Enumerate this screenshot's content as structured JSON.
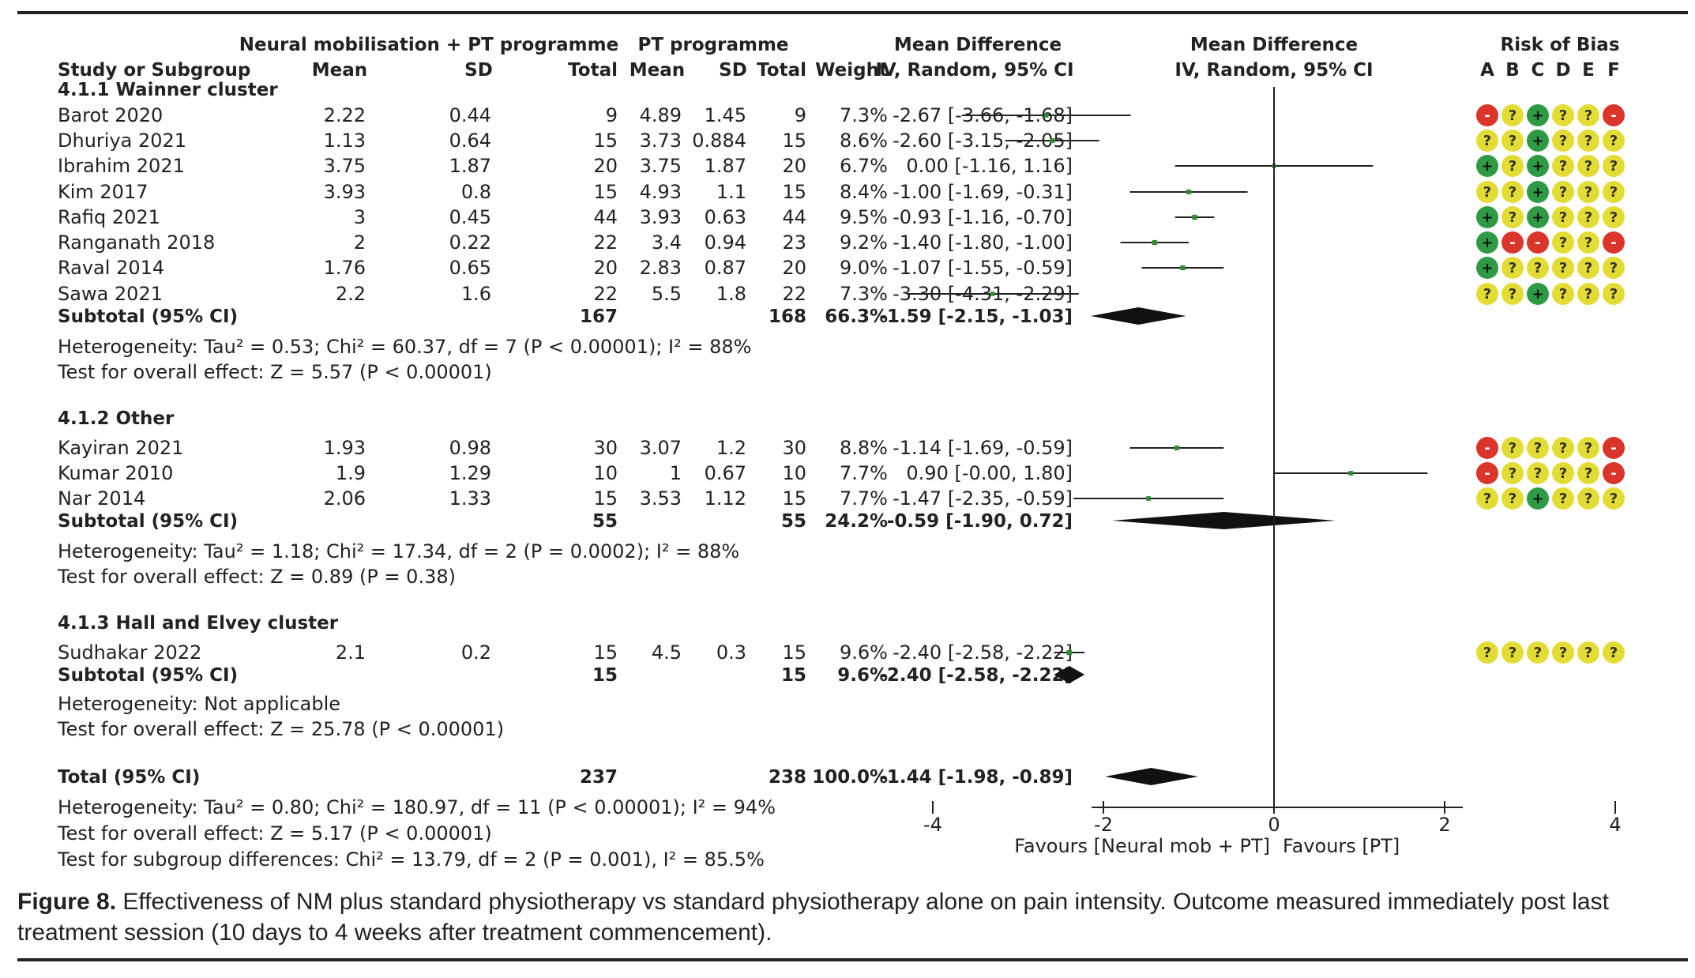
{
  "chart_data": {
    "type": "forest",
    "headers": {
      "group_nm": "Neural mobilisation + PT programme",
      "group_pt": "PT programme",
      "md_col_top": "Mean Difference",
      "md_col_bottom": "IV, Random, 95% CI",
      "plot_top": "Mean Difference",
      "plot_bottom": "IV, Random, 95% CI",
      "rob_title": "Risk of Bias",
      "study": "Study or Subgroup",
      "mean": "Mean",
      "sd": "SD",
      "total": "Total",
      "weight": "Weight",
      "rob_letters": [
        "A",
        "B",
        "C",
        "D",
        "E",
        "F"
      ]
    },
    "subgroups": [
      {
        "title": "4.1.1 Wainner cluster",
        "studies": [
          {
            "name": "Barot 2020",
            "m1": "2.22",
            "sd1": "0.44",
            "n1": "9",
            "m2": "4.89",
            "sd2": "1.45",
            "n2": "9",
            "weight": "7.3%",
            "ci": "-2.67 [-3.66, -1.68]",
            "md": -2.67,
            "lo": -3.66,
            "hi": -1.68,
            "w": 7.3,
            "rob": [
              "-",
              "?",
              "+",
              "?",
              "?",
              "-"
            ]
          },
          {
            "name": "Dhuriya 2021",
            "m1": "1.13",
            "sd1": "0.64",
            "n1": "15",
            "m2": "3.73",
            "sd2": "0.884",
            "n2": "15",
            "weight": "8.6%",
            "ci": "-2.60 [-3.15, -2.05]",
            "md": -2.6,
            "lo": -3.15,
            "hi": -2.05,
            "w": 8.6,
            "rob": [
              "?",
              "?",
              "+",
              "?",
              "?",
              "?"
            ]
          },
          {
            "name": "Ibrahim 2021",
            "m1": "3.75",
            "sd1": "1.87",
            "n1": "20",
            "m2": "3.75",
            "sd2": "1.87",
            "n2": "20",
            "weight": "6.7%",
            "ci": "0.00 [-1.16, 1.16]",
            "md": 0.0,
            "lo": -1.16,
            "hi": 1.16,
            "w": 6.7,
            "rob": [
              "+",
              "?",
              "+",
              "?",
              "?",
              "?"
            ]
          },
          {
            "name": "Kim 2017",
            "m1": "3.93",
            "sd1": "0.8",
            "n1": "15",
            "m2": "4.93",
            "sd2": "1.1",
            "n2": "15",
            "weight": "8.4%",
            "ci": "-1.00 [-1.69, -0.31]",
            "md": -1.0,
            "lo": -1.69,
            "hi": -0.31,
            "w": 8.4,
            "rob": [
              "?",
              "?",
              "+",
              "?",
              "?",
              "?"
            ]
          },
          {
            "name": "Rafiq 2021",
            "m1": "3",
            "sd1": "0.45",
            "n1": "44",
            "m2": "3.93",
            "sd2": "0.63",
            "n2": "44",
            "weight": "9.5%",
            "ci": "-0.93 [-1.16, -0.70]",
            "md": -0.93,
            "lo": -1.16,
            "hi": -0.7,
            "w": 9.5,
            "rob": [
              "+",
              "?",
              "+",
              "?",
              "?",
              "?"
            ]
          },
          {
            "name": "Ranganath 2018",
            "m1": "2",
            "sd1": "0.22",
            "n1": "22",
            "m2": "3.4",
            "sd2": "0.94",
            "n2": "23",
            "weight": "9.2%",
            "ci": "-1.40 [-1.80, -1.00]",
            "md": -1.4,
            "lo": -1.8,
            "hi": -1.0,
            "w": 9.2,
            "rob": [
              "+",
              "-",
              "-",
              "?",
              "?",
              "-"
            ]
          },
          {
            "name": "Raval 2014",
            "m1": "1.76",
            "sd1": "0.65",
            "n1": "20",
            "m2": "2.83",
            "sd2": "0.87",
            "n2": "20",
            "weight": "9.0%",
            "ci": "-1.07 [-1.55, -0.59]",
            "md": -1.07,
            "lo": -1.55,
            "hi": -0.59,
            "w": 9.0,
            "rob": [
              "+",
              "?",
              "?",
              "?",
              "?",
              "?"
            ]
          },
          {
            "name": "Sawa 2021",
            "m1": "2.2",
            "sd1": "1.6",
            "n1": "22",
            "m2": "5.5",
            "sd2": "1.8",
            "n2": "22",
            "weight": "7.3%",
            "ci": "-3.30 [-4.31, -2.29]",
            "md": -3.3,
            "lo": -4.31,
            "hi": -2.29,
            "w": 7.3,
            "rob": [
              "?",
              "?",
              "+",
              "?",
              "?",
              "?"
            ]
          }
        ],
        "subtotal": {
          "label": "Subtotal (95% CI)",
          "n1": "167",
          "n2": "168",
          "weight": "66.3%",
          "ci": "-1.59 [-2.15, -1.03]",
          "md": -1.59,
          "lo": -2.15,
          "hi": -1.03
        },
        "heterogeneity": "Heterogeneity: Tau² = 0.53; Chi² = 60.37, df = 7 (P < 0.00001); I² = 88%",
        "overall": "Test for overall effect: Z = 5.57 (P < 0.00001)"
      },
      {
        "title": "4.1.2 Other",
        "studies": [
          {
            "name": "Kayiran 2021",
            "m1": "1.93",
            "sd1": "0.98",
            "n1": "30",
            "m2": "3.07",
            "sd2": "1.2",
            "n2": "30",
            "weight": "8.8%",
            "ci": "-1.14 [-1.69, -0.59]",
            "md": -1.14,
            "lo": -1.69,
            "hi": -0.59,
            "w": 8.8,
            "rob": [
              "-",
              "?",
              "?",
              "?",
              "?",
              "-"
            ]
          },
          {
            "name": "Kumar 2010",
            "m1": "1.9",
            "sd1": "1.29",
            "n1": "10",
            "m2": "1",
            "sd2": "0.67",
            "n2": "10",
            "weight": "7.7%",
            "ci": "0.90 [-0.00, 1.80]",
            "md": 0.9,
            "lo": 0.0,
            "hi": 1.8,
            "w": 7.7,
            "rob": [
              "-",
              "?",
              "?",
              "?",
              "?",
              "-"
            ]
          },
          {
            "name": "Nar 2014",
            "m1": "2.06",
            "sd1": "1.33",
            "n1": "15",
            "m2": "3.53",
            "sd2": "1.12",
            "n2": "15",
            "weight": "7.7%",
            "ci": "-1.47 [-2.35, -0.59]",
            "md": -1.47,
            "lo": -2.35,
            "hi": -0.59,
            "w": 7.7,
            "rob": [
              "?",
              "?",
              "+",
              "?",
              "?",
              "?"
            ]
          }
        ],
        "subtotal": {
          "label": "Subtotal (95% CI)",
          "n1": "55",
          "n2": "55",
          "weight": "24.2%",
          "ci": "-0.59 [-1.90, 0.72]",
          "md": -0.59,
          "lo": -1.9,
          "hi": 0.72
        },
        "heterogeneity": "Heterogeneity: Tau² = 1.18; Chi² = 17.34, df = 2 (P = 0.0002); I² = 88%",
        "overall": "Test for overall effect: Z = 0.89 (P = 0.38)"
      },
      {
        "title": "4.1.3 Hall and Elvey cluster",
        "studies": [
          {
            "name": "Sudhakar 2022",
            "m1": "2.1",
            "sd1": "0.2",
            "n1": "15",
            "m2": "4.5",
            "sd2": "0.3",
            "n2": "15",
            "weight": "9.6%",
            "ci": "-2.40 [-2.58, -2.22]",
            "md": -2.4,
            "lo": -2.58,
            "hi": -2.22,
            "w": 9.6,
            "rob": [
              "?",
              "?",
              "?",
              "?",
              "?",
              "?"
            ]
          }
        ],
        "subtotal": {
          "label": "Subtotal (95% CI)",
          "n1": "15",
          "n2": "15",
          "weight": "9.6%",
          "ci": "-2.40 [-2.58, -2.22]",
          "md": -2.4,
          "lo": -2.58,
          "hi": -2.22
        },
        "heterogeneity": "Heterogeneity: Not applicable",
        "overall": "Test for overall effect: Z = 25.78 (P < 0.00001)"
      }
    ],
    "total": {
      "label": "Total (95% CI)",
      "n1": "237",
      "n2": "238",
      "weight": "100.0%",
      "ci": "-1.44 [-1.98, -0.89]",
      "md": -1.44,
      "lo": -1.98,
      "hi": -0.89
    },
    "total_heterogeneity": "Heterogeneity: Tau² = 0.80; Chi² = 180.97, df = 11 (P < 0.00001); I² = 94%",
    "total_overall": "Test for overall effect: Z = 5.17 (P < 0.00001)",
    "subgroup_diff": "Test for subgroup differences: Chi² = 13.79, df = 2 (P = 0.001), I² = 85.5%",
    "xlim": [
      -4,
      4
    ],
    "xticks": [
      "-4",
      "-2",
      "0",
      "2",
      "4"
    ],
    "favours_left": "Favours [Neural mob + PT]",
    "favours_right": "Favours [PT]",
    "colors": {
      "point": "#2e8b2e",
      "plus": "#2f9a45",
      "minus": "#d9352b",
      "unclear": "#e2dc34",
      "line": "#222222"
    }
  },
  "caption": {
    "label": "Figure 8.",
    "text": " Effectiveness of NM plus standard physiotherapy vs standard physiotherapy alone on pain intensity. Outcome measured immediately post last treatment session (10 days to 4 weeks after treatment commencement)."
  }
}
